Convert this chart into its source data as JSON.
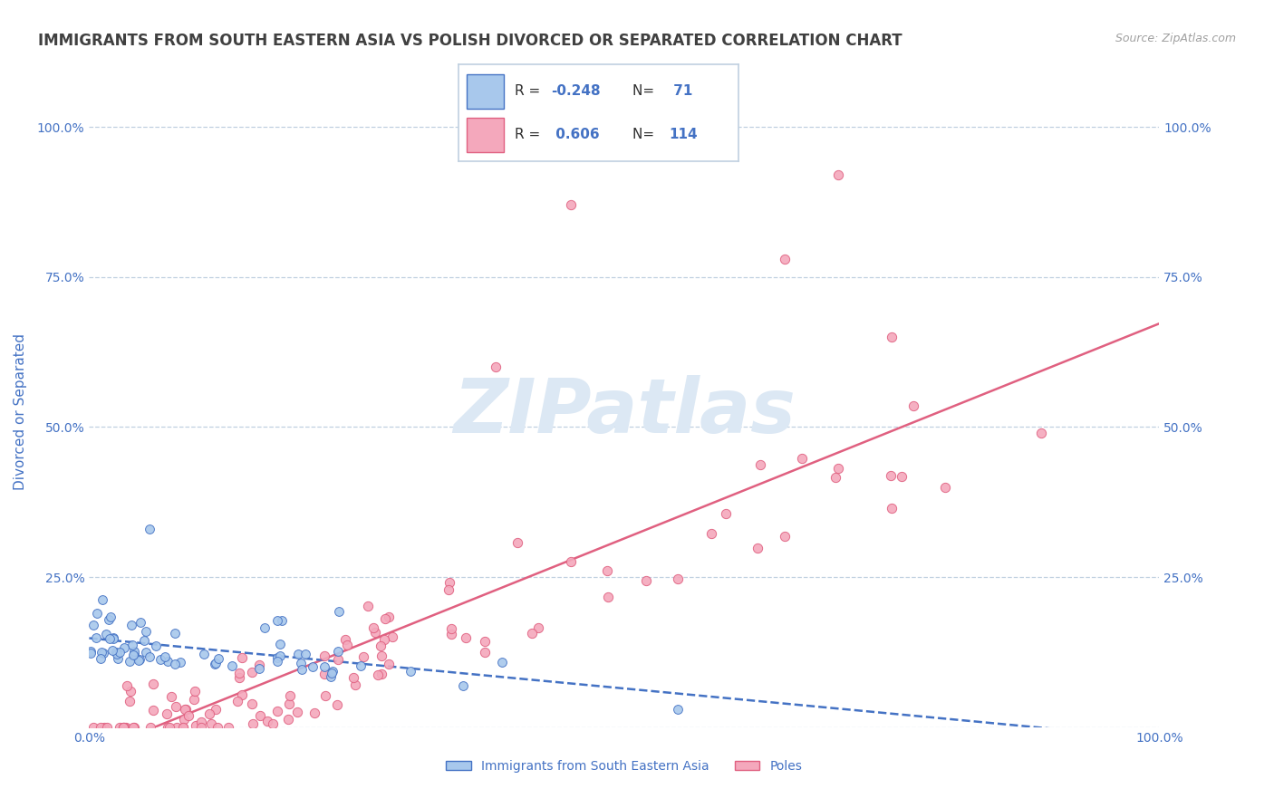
{
  "title": "IMMIGRANTS FROM SOUTH EASTERN ASIA VS POLISH DIVORCED OR SEPARATED CORRELATION CHART",
  "source": "Source: ZipAtlas.com",
  "ylabel": "Divorced or Separated",
  "legend_labels": [
    "Immigrants from South Eastern Asia",
    "Poles"
  ],
  "r1": -0.248,
  "n1": 71,
  "r2": 0.606,
  "n2": 114,
  "color_blue": "#A8C8EC",
  "color_pink": "#F4A8BC",
  "trendline_blue": "#4472C4",
  "trendline_pink": "#E06080",
  "watermark_color": "#DCE8F4",
  "background_color": "#FFFFFF",
  "grid_color": "#C0D0E0",
  "title_color": "#404040",
  "axis_label_color": "#4472C4",
  "tick_color": "#4472C4",
  "source_color": "#A0A0A0"
}
